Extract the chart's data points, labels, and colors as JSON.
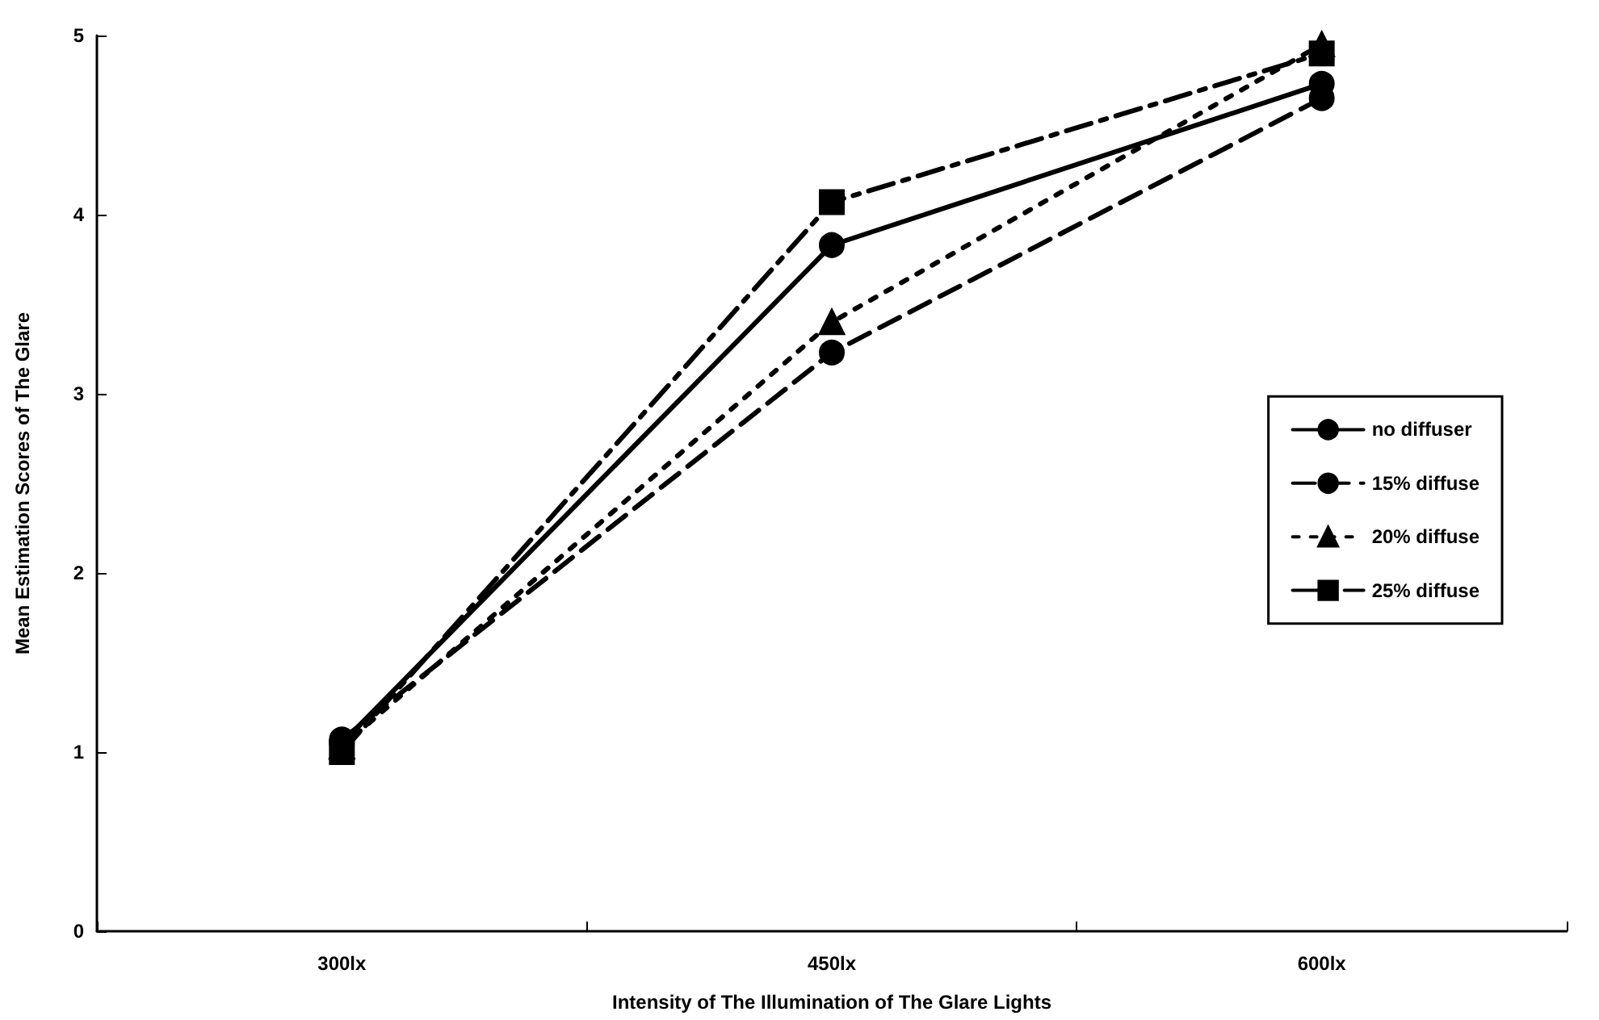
{
  "chart_data": {
    "type": "line",
    "xlabel": "Intensity of The Illumination of The Glare Lights",
    "ylabel": "Mean Estimation Scores of The Glare",
    "categories": [
      "300lx",
      "450lx",
      "600lx"
    ],
    "series": [
      {
        "name": "no diffuser",
        "color": "#000000",
        "values": [
          1.05,
          3.83,
          4.73
        ],
        "marker": "circle",
        "line_style": "solid"
      },
      {
        "name": "15% diffuse",
        "color": "#000000",
        "values": [
          1.07,
          3.23,
          4.65
        ],
        "marker": "circle",
        "line_style": "dashed"
      },
      {
        "name": "20% diffuse",
        "color": "#000000",
        "values": [
          1.03,
          3.4,
          4.95
        ],
        "marker": "triangle",
        "line_style": "dotted"
      },
      {
        "name": "25% diffuse",
        "color": "#000000",
        "values": [
          1.0,
          4.07,
          4.9
        ],
        "marker": "square",
        "line_style": "dashdot"
      }
    ],
    "ylim": [
      0,
      5
    ],
    "yticks": [
      0,
      1,
      2,
      3,
      4,
      5
    ],
    "grid": false,
    "legend": "right"
  }
}
